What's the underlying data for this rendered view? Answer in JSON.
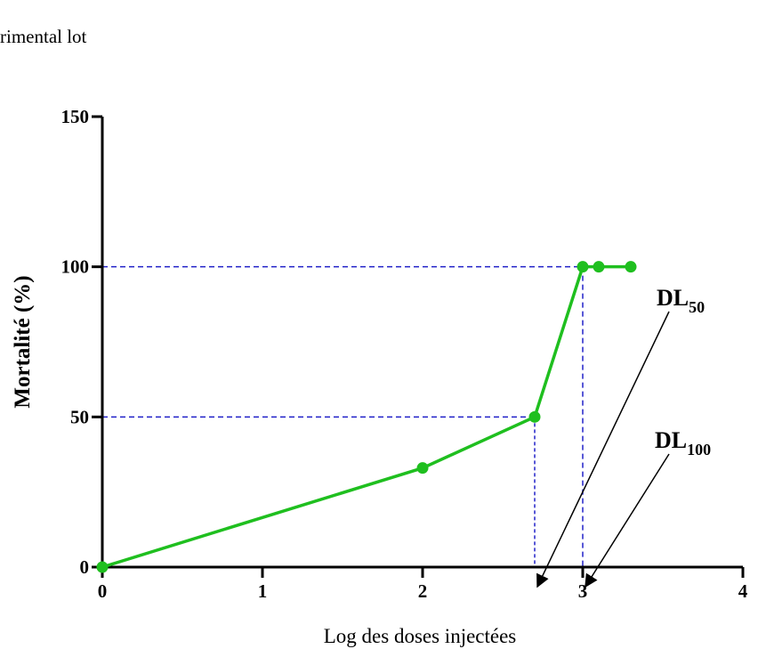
{
  "chart_data": {
    "type": "line",
    "header": "rimental lot",
    "xlabel": "Log des doses injectées",
    "ylabel": "Mortalité (%)",
    "x": [
      0,
      2,
      2.7,
      3,
      3.1,
      3.3
    ],
    "series": [
      {
        "color": "#1fbf1f",
        "values": [
          0,
          33,
          50,
          100,
          100,
          100
        ]
      }
    ],
    "xlim": [
      0,
      4
    ],
    "xticks": [
      0,
      1,
      2,
      3,
      4
    ],
    "ylim": [
      0,
      150
    ],
    "yticks": [
      0,
      50,
      100,
      150
    ],
    "guide_color": "#2020c8",
    "annotations": [
      {
        "text": "DL",
        "sub": "50"
      },
      {
        "text": "DL",
        "sub": "100"
      }
    ]
  }
}
